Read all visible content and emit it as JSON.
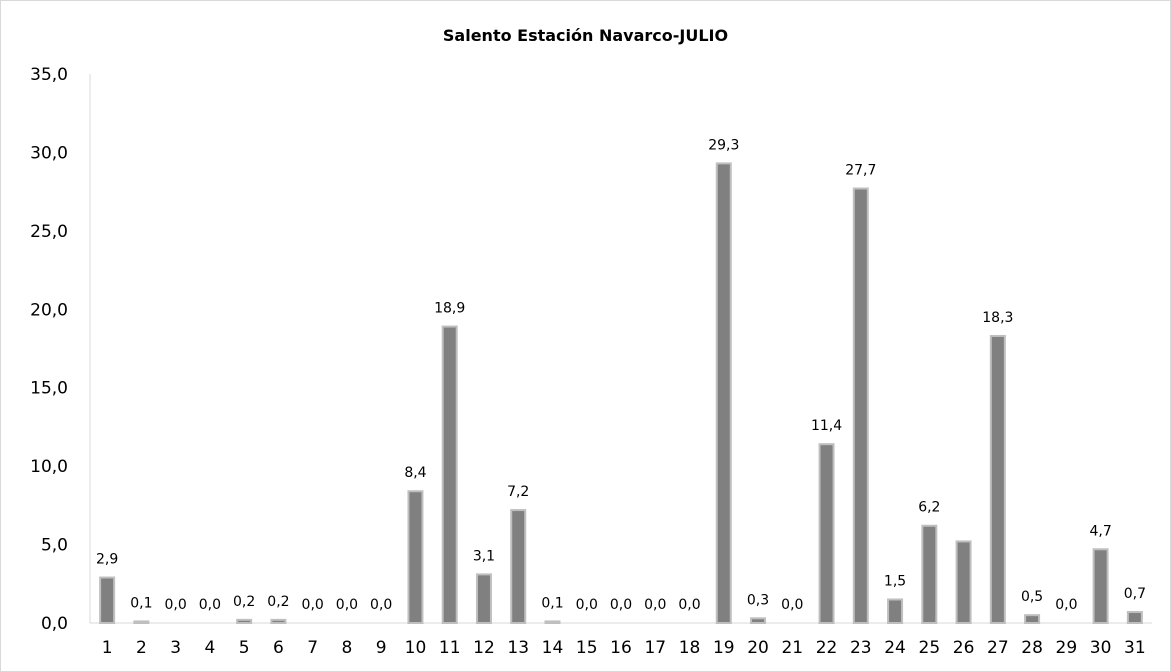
{
  "chart_data": {
    "type": "bar",
    "title": "Salento Estación Navarco-JULIO",
    "xlabel": "",
    "ylabel": "",
    "ylim": [
      0,
      35
    ],
    "yticks": [
      "0,0",
      "5,0",
      "10,0",
      "15,0",
      "20,0",
      "25,0",
      "30,0",
      "35,0"
    ],
    "categories": [
      "1",
      "2",
      "3",
      "4",
      "5",
      "6",
      "7",
      "8",
      "9",
      "10",
      "11",
      "12",
      "13",
      "14",
      "15",
      "16",
      "17",
      "18",
      "19",
      "20",
      "21",
      "22",
      "23",
      "24",
      "25",
      "26",
      "27",
      "28",
      "29",
      "30",
      "31"
    ],
    "values": [
      2.9,
      0.1,
      0.0,
      0.0,
      0.2,
      0.2,
      0.0,
      0.0,
      0.0,
      8.4,
      18.9,
      3.1,
      7.2,
      0.1,
      0.0,
      0.0,
      0.0,
      0.0,
      29.3,
      0.3,
      0.0,
      11.4,
      27.7,
      1.5,
      6.2,
      5.2,
      18.3,
      0.5,
      0.0,
      4.7,
      0.7
    ],
    "data_labels": [
      "2,9",
      "0,1",
      "0,0",
      "0,0",
      "0,2",
      "0,2",
      "0,0",
      "0,0",
      "0,0",
      "8,4",
      "18,9",
      "3,1",
      "7,2",
      "0,1",
      "0,0",
      "0,0",
      "0,0",
      "0,0",
      "29,3",
      "0,3",
      "0,0",
      "11,4",
      "27,7",
      "1,5",
      "6,2",
      "",
      "18,3",
      "0,5",
      "0,0",
      "4,7",
      "0,7"
    ],
    "grid": false,
    "legend": "none",
    "bar_color": "#808080",
    "bar_edge_color": "#bfbfbf"
  }
}
